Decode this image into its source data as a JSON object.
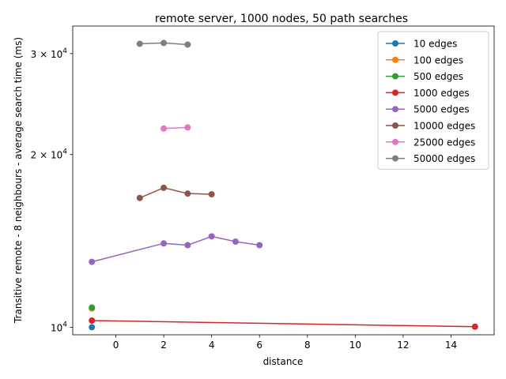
{
  "chart_data": {
    "type": "line",
    "title": "remote server, 1000 nodes, 50 path searches",
    "xlabel": "distance",
    "ylabel": "Transitive remote - 8 neighbours - average search time (ms)",
    "yscale": "log",
    "xlim": [
      -1.8,
      15.8
    ],
    "ylim": [
      9700,
      33500
    ],
    "xticks": [
      0,
      2,
      4,
      6,
      8,
      10,
      12,
      14
    ],
    "yticks": [
      {
        "value": 10000,
        "mant": "10",
        "exp": "4"
      },
      {
        "value": 20000,
        "mant": "2 × 10",
        "exp": "4"
      },
      {
        "value": 30000,
        "mant": "3 × 10",
        "exp": "4"
      }
    ],
    "grid": false,
    "legend_position": "top-right",
    "series": [
      {
        "name": "10 edges",
        "color": "#1f77b4",
        "x": [
          -1
        ],
        "y": [
          10000
        ]
      },
      {
        "name": "100 edges",
        "color": "#ff7f0e",
        "x": [
          -1
        ],
        "y": [
          10780
        ]
      },
      {
        "name": "500 edges",
        "color": "#2ca02c",
        "x": [
          -1
        ],
        "y": [
          10820
        ]
      },
      {
        "name": "1000 edges",
        "color": "#d62728",
        "x": [
          -1,
          15
        ],
        "y": [
          10270,
          10020
        ]
      },
      {
        "name": "5000 edges",
        "color": "#9467bd",
        "x": [
          -1,
          2,
          3,
          4,
          5,
          6
        ],
        "y": [
          13000,
          14000,
          13900,
          14400,
          14100,
          13900
        ]
      },
      {
        "name": "10000 edges",
        "color": "#8c564b",
        "x": [
          1,
          2,
          3,
          4
        ],
        "y": [
          16800,
          17500,
          17100,
          17050
        ]
      },
      {
        "name": "25000 edges",
        "color": "#e377c2",
        "x": [
          2,
          3
        ],
        "y": [
          22200,
          22300
        ]
      },
      {
        "name": "50000 edges",
        "color": "#7f7f7f",
        "x": [
          1,
          2,
          3
        ],
        "y": [
          31200,
          31300,
          31100
        ]
      }
    ]
  }
}
